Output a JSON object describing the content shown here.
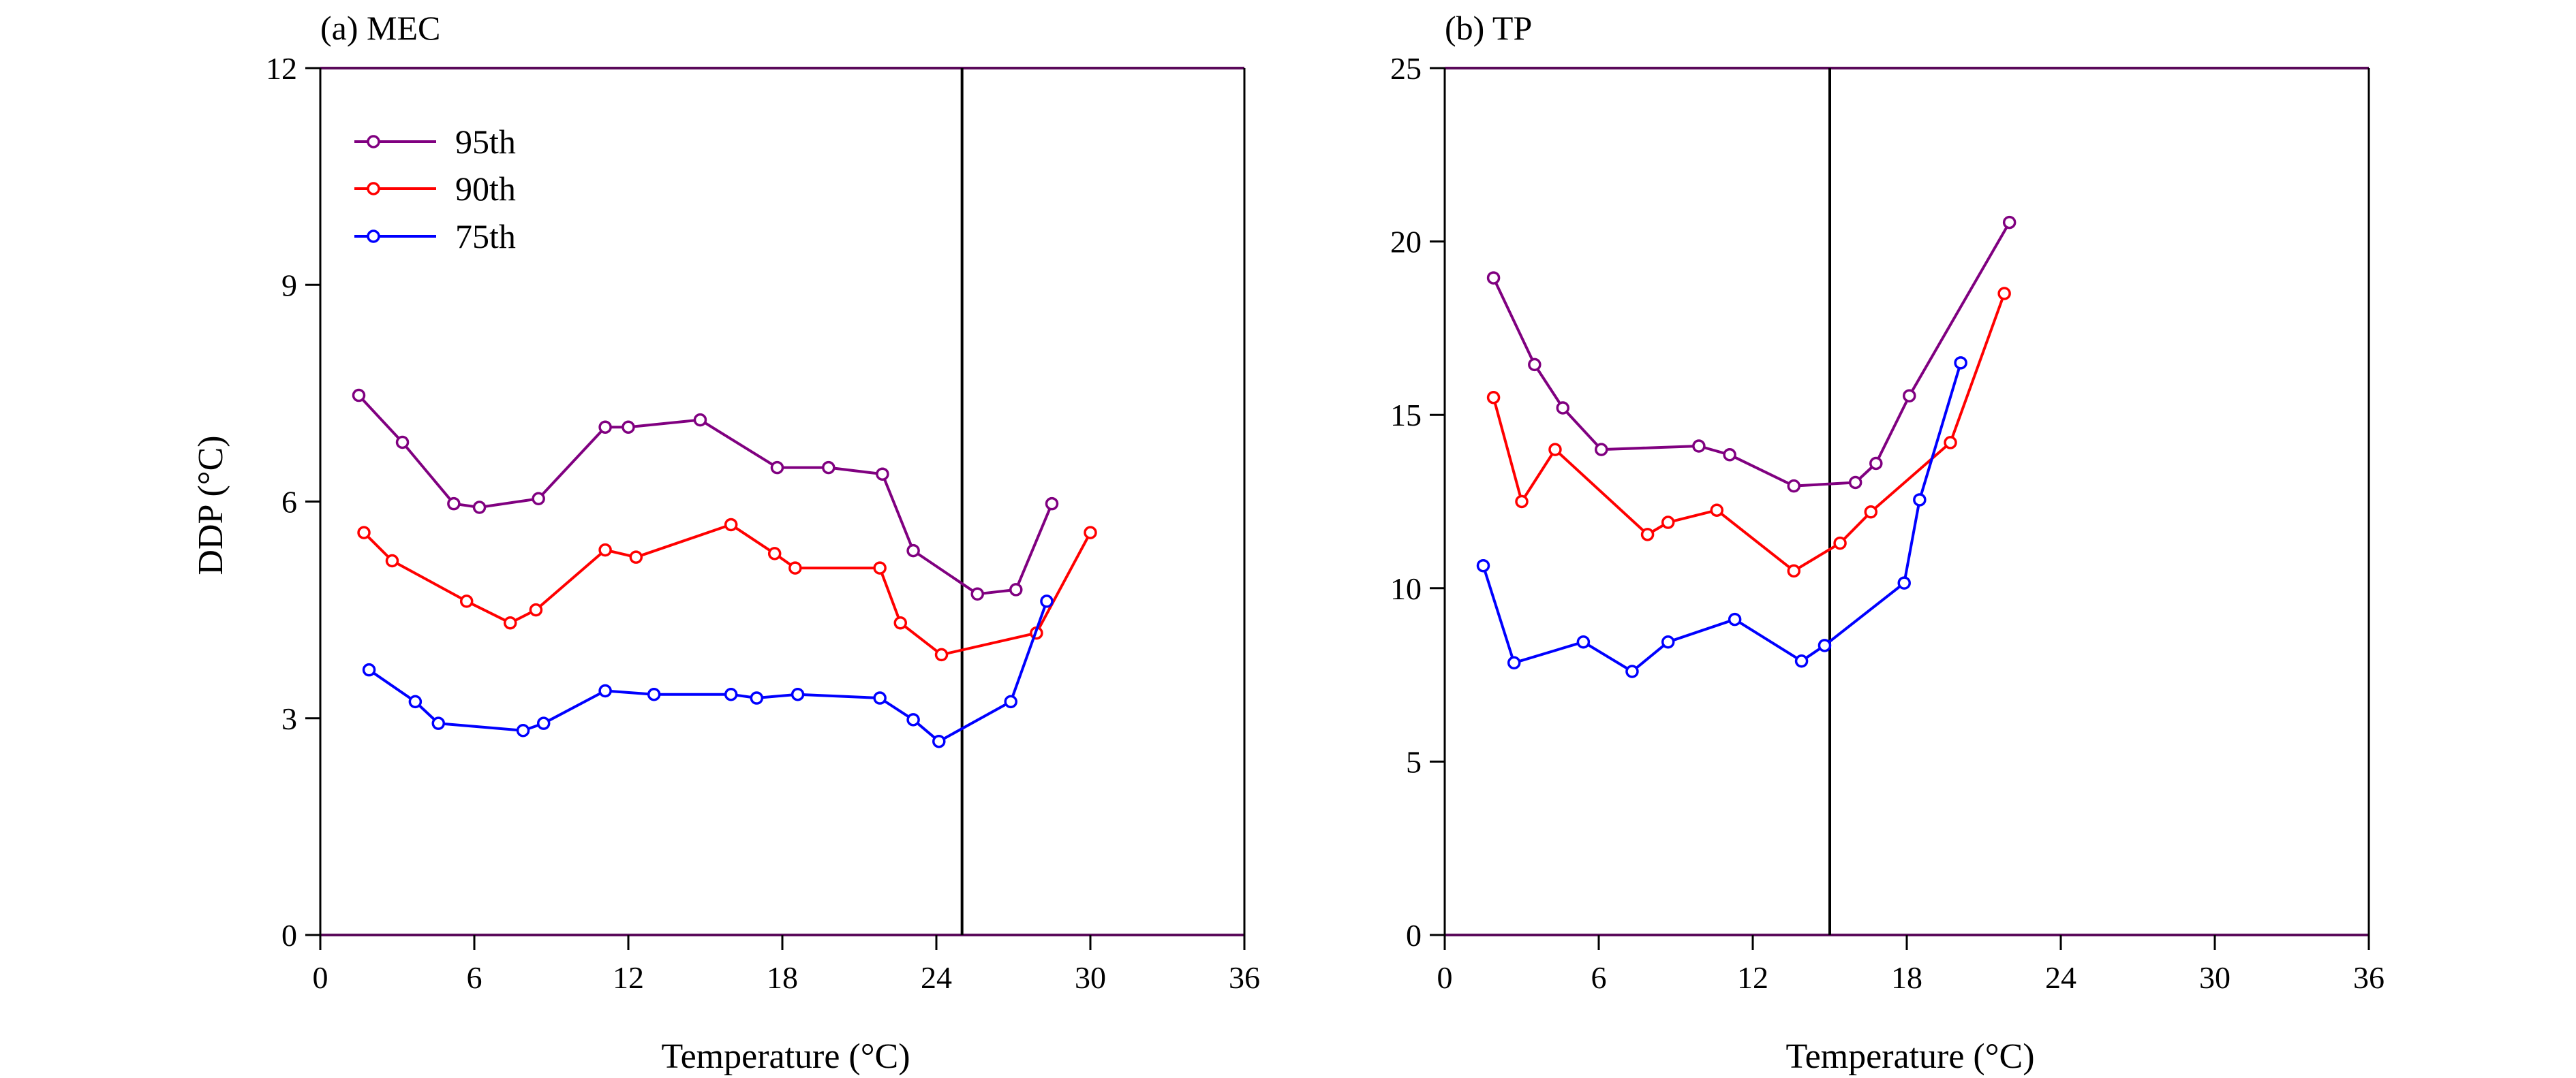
{
  "colors": {
    "frame": "#5a0a5a",
    "axis": "#000000",
    "ref_line": "#000000",
    "p95": "#800080",
    "p90": "#ff0000",
    "p75": "#0000ff"
  },
  "chart_data": [
    {
      "type": "line",
      "title": "(a) MEC",
      "xlabel": "Temperature (°C)",
      "ylabel": "DDP (°C)",
      "xlim": [
        0,
        36
      ],
      "ylim": [
        0,
        12
      ],
      "xticks": [
        0,
        6,
        12,
        18,
        24,
        30,
        36
      ],
      "yticks": [
        0,
        3,
        6,
        9,
        12
      ],
      "xtick_labels": [
        "0",
        "6",
        "12",
        "18",
        "24",
        "30",
        "36"
      ],
      "ytick_labels": [
        "0",
        "3",
        "6",
        "9",
        "12"
      ],
      "ref_line_x": 25,
      "legend": {
        "location": "top-left",
        "entries": [
          "95th",
          "90th",
          "75th"
        ]
      },
      "series": [
        {
          "name": "95th",
          "color_key": "p95",
          "x": [
            1.5,
            3.2,
            5.2,
            6.2,
            8.5,
            11.1,
            12.0,
            14.8,
            17.8,
            19.8,
            21.9,
            23.1,
            25.6,
            27.1,
            28.5
          ],
          "y": [
            7.47,
            6.82,
            5.97,
            5.92,
            6.04,
            7.03,
            7.03,
            7.13,
            6.47,
            6.47,
            6.38,
            5.32,
            4.72,
            4.78,
            5.97
          ]
        },
        {
          "name": "90th",
          "color_key": "p90",
          "x": [
            1.7,
            2.8,
            5.7,
            7.4,
            8.4,
            11.1,
            12.3,
            16.0,
            17.7,
            18.5,
            21.8,
            22.6,
            24.2,
            27.9,
            30.0
          ],
          "y": [
            5.57,
            5.18,
            4.62,
            4.32,
            4.5,
            5.33,
            5.23,
            5.68,
            5.28,
            5.08,
            5.08,
            4.32,
            3.88,
            4.18,
            5.57
          ]
        },
        {
          "name": "75th",
          "color_key": "p75",
          "x": [
            1.9,
            3.7,
            4.6,
            7.9,
            8.7,
            11.1,
            13.0,
            16.0,
            17.0,
            18.6,
            21.8,
            23.1,
            24.1,
            26.9,
            28.3
          ],
          "y": [
            3.67,
            3.23,
            2.93,
            2.83,
            2.93,
            3.38,
            3.33,
            3.33,
            3.28,
            3.33,
            3.28,
            2.98,
            2.68,
            3.23,
            4.62
          ]
        }
      ]
    },
    {
      "type": "line",
      "title": "(b) TP",
      "xlabel": "Temperature (°C)",
      "ylabel": "",
      "xlim": [
        0,
        36
      ],
      "ylim": [
        0,
        25
      ],
      "xticks": [
        0,
        6,
        12,
        18,
        24,
        30,
        36
      ],
      "yticks": [
        0,
        5,
        10,
        15,
        20,
        25
      ],
      "xtick_labels": [
        "0",
        "6",
        "12",
        "18",
        "24",
        "30",
        "36"
      ],
      "ytick_labels": [
        "0",
        "5",
        "10",
        "15",
        "20",
        "25"
      ],
      "ref_line_x": 15,
      "series": [
        {
          "name": "95th",
          "color_key": "p95",
          "x": [
            1.9,
            3.5,
            4.6,
            6.1,
            9.9,
            11.1,
            13.6,
            16.0,
            16.8,
            18.1,
            22.0
          ],
          "y": [
            18.95,
            16.45,
            15.2,
            14.0,
            14.1,
            13.85,
            12.95,
            13.05,
            13.6,
            15.55,
            20.55
          ]
        },
        {
          "name": "90th",
          "color_key": "p90",
          "x": [
            1.9,
            3.0,
            4.3,
            7.9,
            8.7,
            10.6,
            13.6,
            15.4,
            16.6,
            19.7,
            21.8
          ],
          "y": [
            15.5,
            12.5,
            14.0,
            11.55,
            11.9,
            12.25,
            10.5,
            11.3,
            12.2,
            14.2,
            18.5
          ]
        },
        {
          "name": "75th",
          "color_key": "p75",
          "x": [
            1.5,
            2.7,
            5.4,
            7.3,
            8.7,
            11.3,
            13.9,
            14.8,
            17.9,
            18.5,
            20.1
          ],
          "y": [
            10.65,
            7.85,
            8.45,
            7.6,
            8.45,
            9.1,
            7.9,
            8.35,
            10.15,
            12.55,
            16.5
          ]
        }
      ]
    }
  ]
}
